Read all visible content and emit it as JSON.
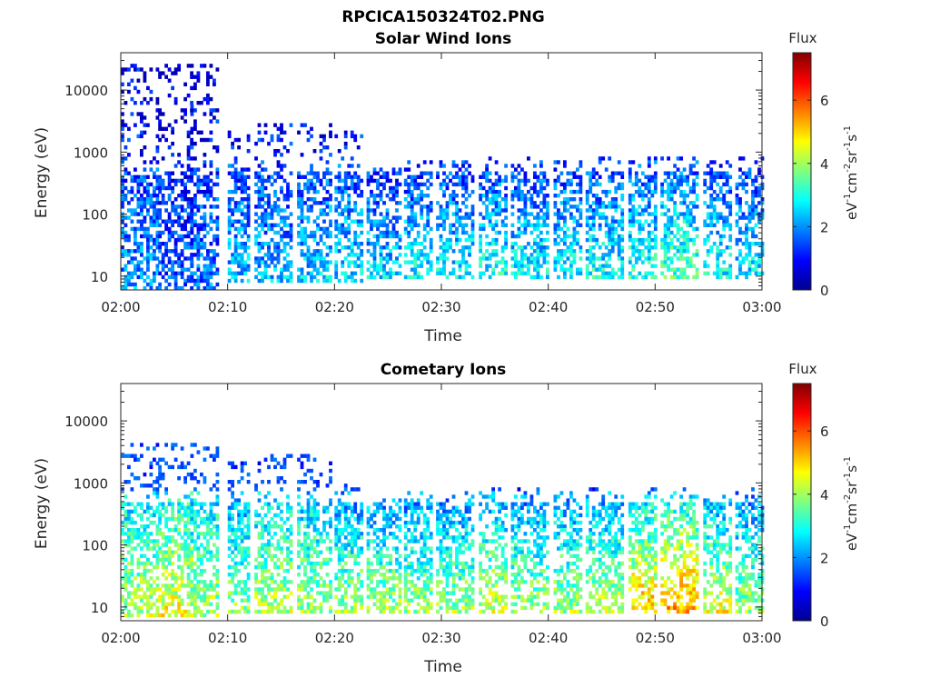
{
  "title": "RPCICA150324T02.PNG",
  "chart_data": [
    {
      "type": "heatmap",
      "title": "Solar Wind Ions",
      "xlabel": "Time",
      "ylabel": "Energy (eV)",
      "x_ticks": [
        "02:00",
        "02:10",
        "02:20",
        "02:30",
        "02:40",
        "02:50",
        "03:00"
      ],
      "xlim": [
        "02:00",
        "03:00"
      ],
      "y_scale": "log",
      "y_ticks": [
        "10",
        "100",
        "1000",
        "10000"
      ],
      "ylim": [
        6,
        40000
      ],
      "colorbar": {
        "label": "Flux",
        "unit": "eV-1cm-2sr-1s-1",
        "ticks": [
          "0",
          "2",
          "4",
          "6"
        ],
        "range": [
          0,
          7.5
        ],
        "colormap": "jet"
      },
      "bands": [
        {
          "from": 0,
          "to": 3.5,
          "energy": [
            6.5,
            30000
          ],
          "level": 2.0
        },
        {
          "from": 3.5,
          "to": 6.5,
          "energy": [
            6.5,
            30000
          ],
          "level": 1.5
        },
        {
          "from": 6.5,
          "to": 9,
          "energy": [
            6.5,
            30000
          ],
          "level": 1.8
        },
        {
          "from": 10,
          "to": 12,
          "energy": [
            8,
            2500
          ],
          "level": 2.4
        },
        {
          "from": 12.5,
          "to": 16,
          "energy": [
            8,
            3000
          ],
          "level": 2.3
        },
        {
          "from": 16.5,
          "to": 19.5,
          "energy": [
            8,
            3000
          ],
          "level": 2.5
        },
        {
          "from": 20,
          "to": 22.5,
          "energy": [
            8,
            2500
          ],
          "level": 2.6
        },
        {
          "from": 23,
          "to": 26,
          "energy": [
            10,
            600
          ],
          "level": 2.6
        },
        {
          "from": 26.5,
          "to": 29,
          "energy": [
            10,
            800
          ],
          "level": 2.8
        },
        {
          "from": 29.5,
          "to": 33,
          "energy": [
            10,
            800
          ],
          "level": 2.8
        },
        {
          "from": 33.5,
          "to": 36,
          "energy": [
            10,
            900
          ],
          "level": 3.0
        },
        {
          "from": 36.5,
          "to": 40,
          "energy": [
            10,
            900
          ],
          "level": 2.8
        },
        {
          "from": 40.5,
          "to": 43,
          "energy": [
            10,
            800
          ],
          "level": 2.9
        },
        {
          "from": 43.5,
          "to": 47,
          "energy": [
            10,
            900
          ],
          "level": 2.9
        },
        {
          "from": 47.5,
          "to": 50,
          "energy": [
            10,
            900
          ],
          "level": 3.1
        },
        {
          "from": 50.5,
          "to": 54,
          "energy": [
            10,
            900
          ],
          "level": 3.4
        },
        {
          "from": 54.5,
          "to": 57,
          "energy": [
            10,
            800
          ],
          "level": 2.9
        },
        {
          "from": 57.5,
          "to": 60,
          "energy": [
            10,
            900
          ],
          "level": 2.7
        }
      ]
    },
    {
      "type": "heatmap",
      "title": "Cometary Ions",
      "xlabel": "Time",
      "ylabel": "Energy (eV)",
      "x_ticks": [
        "02:00",
        "02:10",
        "02:20",
        "02:30",
        "02:40",
        "02:50",
        "03:00"
      ],
      "xlim": [
        "02:00",
        "03:00"
      ],
      "y_scale": "log",
      "y_ticks": [
        "10",
        "100",
        "1000",
        "10000"
      ],
      "ylim": [
        6,
        40000
      ],
      "colorbar": {
        "label": "Flux",
        "unit": "eV-1cm-2sr-1s-1",
        "ticks": [
          "0",
          "2",
          "4",
          "6"
        ],
        "range": [
          0,
          7.5
        ],
        "colormap": "jet"
      },
      "bands": [
        {
          "from": 0,
          "to": 3.5,
          "energy": [
            7,
            5000
          ],
          "level": 4.2
        },
        {
          "from": 3.5,
          "to": 6.5,
          "energy": [
            7,
            5000
          ],
          "level": 4.6
        },
        {
          "from": 6.5,
          "to": 9,
          "energy": [
            7,
            5000
          ],
          "level": 4.1
        },
        {
          "from": 10,
          "to": 12,
          "energy": [
            8,
            2500
          ],
          "level": 3.8
        },
        {
          "from": 12.5,
          "to": 16,
          "energy": [
            8,
            3000
          ],
          "level": 4.2
        },
        {
          "from": 16.5,
          "to": 19.5,
          "energy": [
            8,
            3000
          ],
          "level": 4.0
        },
        {
          "from": 20,
          "to": 22.5,
          "energy": [
            8,
            1000
          ],
          "level": 4.0
        },
        {
          "from": 23,
          "to": 26,
          "energy": [
            8,
            600
          ],
          "level": 4.2
        },
        {
          "from": 26.5,
          "to": 29,
          "energy": [
            8,
            800
          ],
          "level": 4.0
        },
        {
          "from": 29.5,
          "to": 33,
          "energy": [
            8,
            800
          ],
          "level": 4.0
        },
        {
          "from": 33.5,
          "to": 36,
          "energy": [
            8,
            900
          ],
          "level": 4.4
        },
        {
          "from": 36.5,
          "to": 40,
          "energy": [
            8,
            900
          ],
          "level": 4.0
        },
        {
          "from": 40.5,
          "to": 43,
          "energy": [
            8,
            800
          ],
          "level": 4.1
        },
        {
          "from": 43.5,
          "to": 47,
          "energy": [
            8,
            900
          ],
          "level": 4.2
        },
        {
          "from": 47.5,
          "to": 50,
          "energy": [
            8,
            900
          ],
          "level": 5.2
        },
        {
          "from": 50.5,
          "to": 54,
          "energy": [
            8,
            900
          ],
          "level": 5.6
        },
        {
          "from": 54.5,
          "to": 57,
          "energy": [
            8,
            800
          ],
          "level": 4.6
        },
        {
          "from": 57.5,
          "to": 60,
          "energy": [
            8,
            900
          ],
          "level": 4.0
        }
      ]
    }
  ]
}
